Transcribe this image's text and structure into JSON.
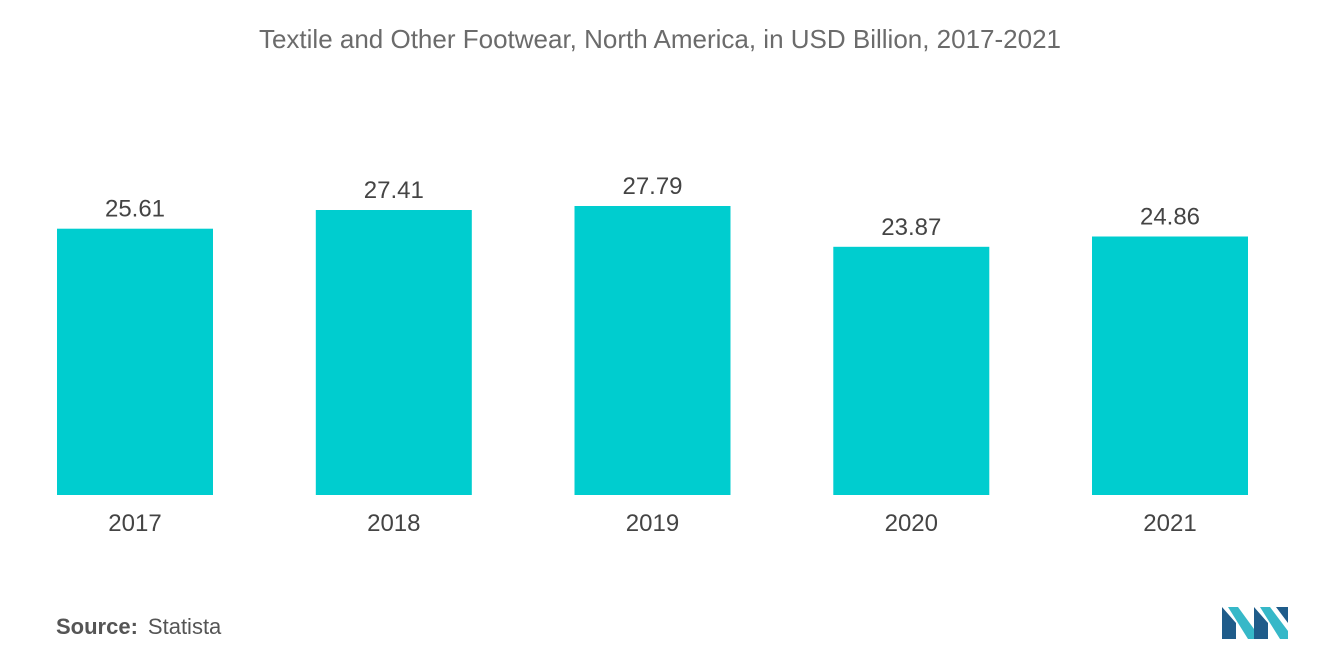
{
  "chart_data": {
    "type": "bar",
    "title": "Textile and Other Footwear, North America, in USD Billion, 2017-2021",
    "categories": [
      "2017",
      "2018",
      "2019",
      "2020",
      "2021"
    ],
    "values": [
      25.61,
      27.41,
      27.79,
      23.87,
      24.86
    ],
    "value_labels": [
      "25.61",
      "27.41",
      "27.79",
      "23.87",
      "24.86"
    ],
    "xlabel": "",
    "ylabel": "",
    "ylim": [
      0,
      27.79
    ],
    "grid": false,
    "legend": "none",
    "bar_color": "#00CDCF"
  },
  "source": {
    "key": "Source:",
    "value": "Statista"
  },
  "logo": {
    "icon": "mordor-intelligence-logo",
    "colors": [
      "#1F5C8A",
      "#36B8C8"
    ]
  }
}
